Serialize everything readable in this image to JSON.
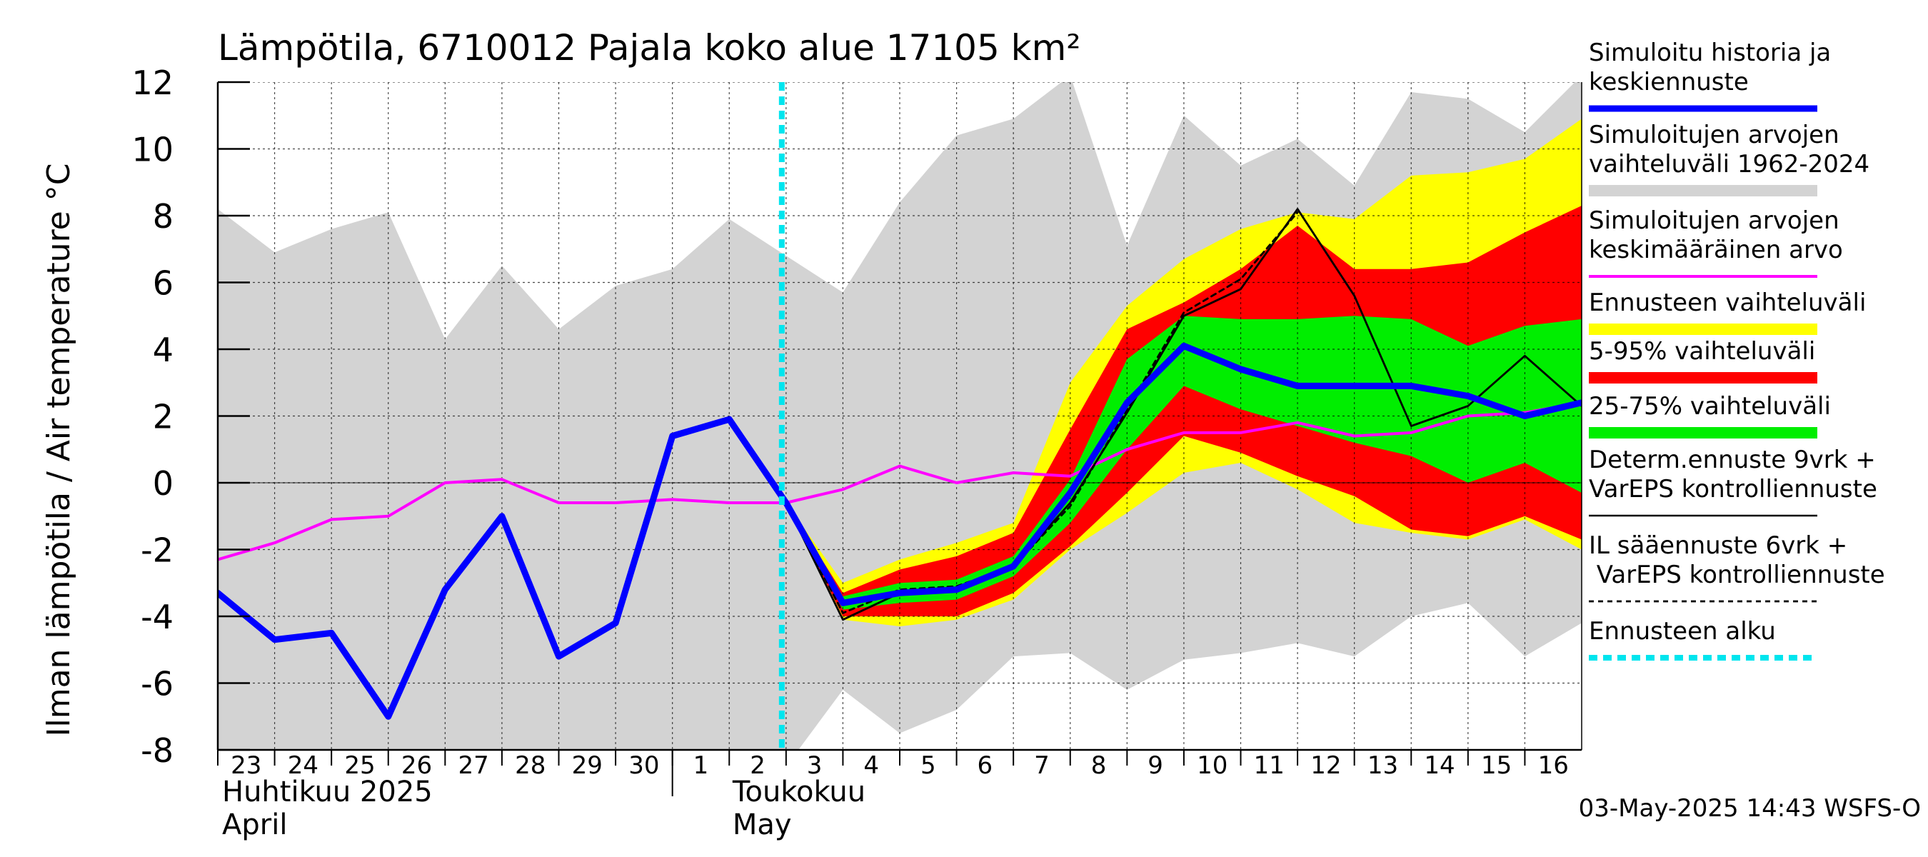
{
  "chart_data": {
    "type": "line",
    "title": "Lämpötila, 6710012 Pajala koko alue 17105 km²",
    "ylabel": "Ilman lämpötila / Air temperature   °C",
    "ylim": [
      -8,
      12
    ],
    "yticks": [
      -8,
      -6,
      -4,
      -2,
      0,
      2,
      4,
      6,
      8,
      10,
      12
    ],
    "x_start": "2025-04-23",
    "x_end": "2025-05-16",
    "x_tick_labels": [
      "23",
      "24",
      "25",
      "26",
      "27",
      "28",
      "29",
      "30",
      "1",
      "2",
      "3",
      "4",
      "5",
      "6",
      "7",
      "8",
      "9",
      "10",
      "11",
      "12",
      "13",
      "14",
      "15",
      "16"
    ],
    "month_labels": [
      {
        "fi": "Huhtikuu  2025",
        "en": "April"
      },
      {
        "fi": "Toukokuu",
        "en": "May"
      }
    ],
    "forecast_start": "2025-05-03",
    "grid": true,
    "legend_position": "right",
    "timestamp": "03-May-2025 14:43 WSFS-O",
    "legend": [
      {
        "label": "Simuloitu historia ja keskiennuste",
        "color": "#0000ff",
        "style": "thick"
      },
      {
        "label": "Simuloitujen arvojen vaihteluväli 1962-2024",
        "color": "#d3d3d3",
        "style": "band"
      },
      {
        "label": "Simuloitujen arvojen keskimääräinen arvo",
        "color": "#ff00ff",
        "style": "line"
      },
      {
        "label": "Ennusteen vaihteluväli",
        "color": "#ffff00",
        "style": "band"
      },
      {
        "label": "5-95% vaihteluväli",
        "color": "#ff0000",
        "style": "band"
      },
      {
        "label": "25-75% vaihteluväli",
        "color": "#00ee00",
        "style": "band"
      },
      {
        "label": "Determ.ennuste 9vrk + VarEPS kontrolliennuste",
        "color": "#000000",
        "style": "line"
      },
      {
        "label": "IL sääennuste 6vrk  +   VarEPS kontrolliennuste",
        "color": "#000000",
        "style": "dashed"
      },
      {
        "label": "Ennusteen alku",
        "color": "#00e5ee",
        "style": "dotted"
      }
    ],
    "series": [
      {
        "name": "Simuloitu historia ja keskiennuste",
        "x": [
          "2025-04-23",
          "2025-04-24",
          "2025-04-25",
          "2025-04-26",
          "2025-04-27",
          "2025-04-28",
          "2025-04-29",
          "2025-04-30",
          "2025-05-01",
          "2025-05-02",
          "2025-05-03",
          "2025-05-04",
          "2025-05-05",
          "2025-05-06",
          "2025-05-07",
          "2025-05-08",
          "2025-05-09",
          "2025-05-10",
          "2025-05-11",
          "2025-05-12",
          "2025-05-13",
          "2025-05-14",
          "2025-05-15",
          "2025-05-16",
          "2025-05-17"
        ],
        "y": [
          -3.3,
          -4.7,
          -4.5,
          -7.0,
          -3.2,
          -1.0,
          -5.2,
          -4.2,
          1.4,
          1.9,
          -0.6,
          -3.6,
          -3.3,
          -3.2,
          -2.5,
          -0.3,
          2.4,
          4.1,
          3.4,
          2.9,
          2.9,
          2.9,
          2.6,
          2.0,
          2.4
        ]
      },
      {
        "name": "Simuloitujen arvojen keskimääräinen arvo",
        "x": [
          "2025-04-23",
          "2025-04-24",
          "2025-04-25",
          "2025-04-26",
          "2025-04-27",
          "2025-04-28",
          "2025-04-29",
          "2025-04-30",
          "2025-05-01",
          "2025-05-02",
          "2025-05-03",
          "2025-05-04",
          "2025-05-05",
          "2025-05-06",
          "2025-05-07",
          "2025-05-08",
          "2025-05-09",
          "2025-05-10",
          "2025-05-11",
          "2025-05-12",
          "2025-05-13",
          "2025-05-14",
          "2025-05-15",
          "2025-05-16",
          "2025-05-17"
        ],
        "y": [
          -2.3,
          -1.8,
          -1.1,
          -1.0,
          0.0,
          0.1,
          -0.6,
          -0.6,
          -0.5,
          -0.6,
          -0.6,
          -0.2,
          0.5,
          0.0,
          0.3,
          0.2,
          1.0,
          1.5,
          1.5,
          1.8,
          1.4,
          1.5,
          2.0,
          2.1,
          2.4
        ]
      },
      {
        "name": "Determ.ennuste 9vrk + VarEPS kontrolliennuste",
        "x": [
          "2025-05-02",
          "2025-05-03",
          "2025-05-04",
          "2025-05-05",
          "2025-05-06",
          "2025-05-07",
          "2025-05-08",
          "2025-05-09",
          "2025-05-10",
          "2025-05-11",
          "2025-05-12",
          "2025-05-13",
          "2025-05-14",
          "2025-05-15",
          "2025-05-16",
          "2025-05-17"
        ],
        "y": [
          1.9,
          -0.6,
          -4.1,
          -3.3,
          -3.2,
          -2.5,
          -0.6,
          2.1,
          5.0,
          5.8,
          8.2,
          5.6,
          1.7,
          2.3,
          3.8,
          2.3
        ]
      },
      {
        "name": "IL sääennuste 6vrk  +   VarEPS kontrolliennuste",
        "x": [
          "2025-05-02",
          "2025-05-03",
          "2025-05-04",
          "2025-05-05",
          "2025-05-06",
          "2025-05-07",
          "2025-05-08",
          "2025-05-09",
          "2025-05-10",
          "2025-05-11",
          "2025-05-12"
        ],
        "y": [
          1.9,
          -0.6,
          -3.9,
          -3.2,
          -3.1,
          -2.5,
          -0.7,
          2.2,
          5.1,
          6.1,
          8.1
        ]
      }
    ],
    "bands": [
      {
        "name": "Simuloitujen arvojen vaihteluväli 1962-2024",
        "x": [
          "2025-04-23",
          "2025-04-24",
          "2025-04-25",
          "2025-04-26",
          "2025-04-27",
          "2025-04-28",
          "2025-04-29",
          "2025-04-30",
          "2025-05-01",
          "2025-05-02",
          "2025-05-03",
          "2025-05-04",
          "2025-05-05",
          "2025-05-06",
          "2025-05-07",
          "2025-05-08",
          "2025-05-09",
          "2025-05-10",
          "2025-05-11",
          "2025-05-12",
          "2025-05-13",
          "2025-05-14",
          "2025-05-15",
          "2025-05-16",
          "2025-05-17"
        ],
        "lower": [
          -8,
          -8,
          -8,
          -8,
          -8,
          -8,
          -8,
          -8,
          -8,
          -8,
          -8.5,
          -6.2,
          -7.5,
          -6.8,
          -5.2,
          -5.1,
          -6.2,
          -5.3,
          -5.1,
          -4.8,
          -5.2,
          -4.0,
          -3.6,
          -5.2,
          -4.2
        ],
        "upper": [
          8.2,
          6.9,
          7.6,
          8.1,
          4.3,
          6.5,
          4.6,
          5.9,
          6.4,
          7.9,
          6.8,
          5.7,
          8.4,
          10.4,
          10.9,
          12.2,
          7.1,
          11.0,
          9.5,
          10.3,
          8.9,
          11.7,
          11.5,
          10.5,
          12.2
        ]
      },
      {
        "name": "Ennusteen vaihteluväli",
        "x": [
          "2025-05-03",
          "2025-05-04",
          "2025-05-05",
          "2025-05-06",
          "2025-05-07",
          "2025-05-08",
          "2025-05-09",
          "2025-05-10",
          "2025-05-11",
          "2025-05-12",
          "2025-05-13",
          "2025-05-14",
          "2025-05-15",
          "2025-05-16",
          "2025-05-17"
        ],
        "lower": [
          -0.6,
          -4.1,
          -4.3,
          -4.1,
          -3.5,
          -2.0,
          -0.9,
          0.3,
          0.6,
          -0.2,
          -1.2,
          -1.5,
          -1.7,
          -1.1,
          -2.0
        ],
        "upper": [
          -0.6,
          -3.0,
          -2.3,
          -1.8,
          -1.2,
          3.0,
          5.3,
          6.7,
          7.6,
          8.1,
          7.9,
          9.2,
          9.3,
          9.7,
          10.9
        ]
      },
      {
        "name": "5-95% vaihteluväli",
        "x": [
          "2025-05-03",
          "2025-05-04",
          "2025-05-05",
          "2025-05-06",
          "2025-05-07",
          "2025-05-08",
          "2025-05-09",
          "2025-05-10",
          "2025-05-11",
          "2025-05-12",
          "2025-05-13",
          "2025-05-14",
          "2025-05-15",
          "2025-05-16",
          "2025-05-17"
        ],
        "lower": [
          -0.6,
          -4.0,
          -4.0,
          -4.0,
          -3.3,
          -1.9,
          -0.3,
          1.4,
          0.9,
          0.2,
          -0.4,
          -1.4,
          -1.6,
          -1.0,
          -1.7
        ],
        "upper": [
          -0.6,
          -3.3,
          -2.6,
          -2.2,
          -1.5,
          1.6,
          4.6,
          5.4,
          6.4,
          7.7,
          6.4,
          6.4,
          6.6,
          7.5,
          8.3
        ]
      },
      {
        "name": "25-75% vaihteluväli",
        "x": [
          "2025-05-03",
          "2025-05-04",
          "2025-05-05",
          "2025-05-06",
          "2025-05-07",
          "2025-05-08",
          "2025-05-09",
          "2025-05-10",
          "2025-05-11",
          "2025-05-12",
          "2025-05-13",
          "2025-05-14",
          "2025-05-15",
          "2025-05-16",
          "2025-05-17"
        ],
        "lower": [
          -0.6,
          -3.8,
          -3.6,
          -3.5,
          -2.8,
          -1.2,
          1.0,
          2.9,
          2.2,
          1.7,
          1.2,
          0.8,
          0.0,
          0.6,
          -0.3
        ],
        "upper": [
          -0.6,
          -3.4,
          -3.0,
          -2.9,
          -2.2,
          0.1,
          3.7,
          5.0,
          4.9,
          4.9,
          5.0,
          4.9,
          4.1,
          4.7,
          4.9
        ]
      }
    ]
  }
}
